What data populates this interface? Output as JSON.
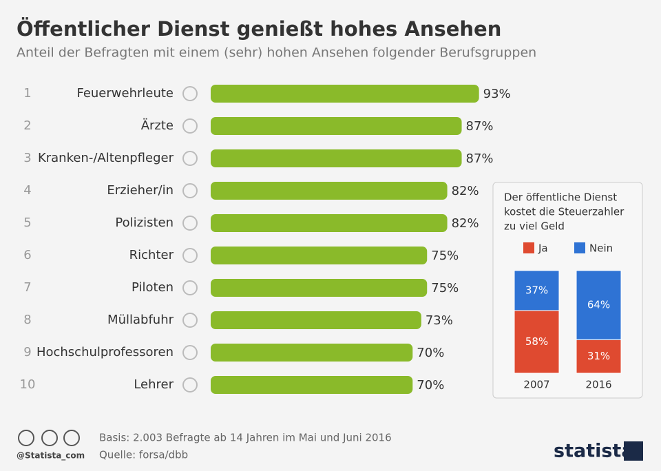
{
  "header": {
    "title": "Öffentlicher Dienst genießt hohes Ansehen",
    "subtitle": "Anteil der Befragten mit einem (sehr) hohen Ansehen folgender Berufsgruppen"
  },
  "chart_data": [
    {
      "type": "hbar",
      "ranks": [
        1,
        2,
        3,
        4,
        5,
        6,
        7,
        8,
        9,
        10
      ],
      "categories": [
        "Feuerwehrleute",
        "Ärzte",
        "Kranken-/Altenpfleger",
        "Erzieher/in",
        "Polizisten",
        "Richter",
        "Piloten",
        "Müllabfuhr",
        "Hochschulprofessoren",
        "Lehrer"
      ],
      "values": [
        93,
        87,
        87,
        82,
        82,
        75,
        75,
        73,
        70,
        70
      ],
      "value_labels": [
        "93%",
        "87%",
        "87%",
        "82%",
        "82%",
        "75%",
        "75%",
        "73%",
        "70%",
        "70%"
      ],
      "color": "#8aba2a"
    },
    {
      "type": "stacked-bar",
      "title": [
        "Der öffentliche Dienst",
        "kostet die Steuerzahler",
        "zu viel Geld"
      ],
      "categories": [
        "2007",
        "2016"
      ],
      "series": [
        {
          "name": "Ja",
          "color": "#df4a30",
          "values": [
            58,
            31
          ],
          "value_labels": [
            "58%",
            "31%"
          ]
        },
        {
          "name": "Nein",
          "color": "#2f73d4",
          "values": [
            37,
            64
          ],
          "value_labels": [
            "37%",
            "64%"
          ]
        }
      ]
    }
  ],
  "footer": {
    "handle": "@Statista_com",
    "basis": "Basis: 2.003 Befragte ab 14 Jahren im Mai und Juni 2016",
    "source": "Quelle: forsa/dbb",
    "logo": "statista"
  }
}
